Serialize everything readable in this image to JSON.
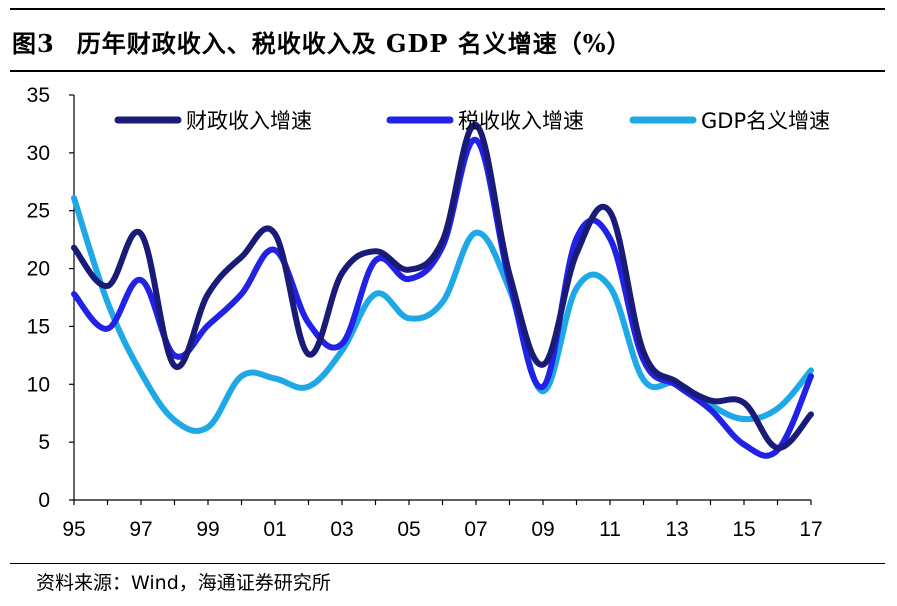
{
  "title": {
    "figure_label": "图3",
    "text": "历年财政收入、税收收入及 GDP 名义增速（%）"
  },
  "source": "资料来源：Wind，海通证券研究所",
  "chart_data": {
    "type": "line",
    "title": "历年财政收入、税收收入及 GDP 名义增速（%）",
    "xlabel": "",
    "ylabel": "",
    "ylim": [
      0,
      35
    ],
    "yticks": [
      "0",
      "5",
      "10",
      "15",
      "20",
      "25",
      "30",
      "35"
    ],
    "xlim": [
      1995,
      2017
    ],
    "xticks": [
      "95",
      "97",
      "99",
      "01",
      "03",
      "05",
      "07",
      "09",
      "11",
      "13",
      "15",
      "17"
    ],
    "x": [
      1995,
      1996,
      1997,
      1998,
      1999,
      2000,
      2001,
      2002,
      2003,
      2004,
      2005,
      2006,
      2007,
      2008,
      2009,
      2010,
      2011,
      2012,
      2013,
      2014,
      2015,
      2016,
      2017
    ],
    "legend_position": "top",
    "series": [
      {
        "name": "财政收入增速",
        "color": "#1a1a78",
        "values": [
          21.8,
          18.5,
          23.0,
          11.6,
          17.8,
          21.0,
          23.0,
          12.6,
          19.6,
          21.5,
          19.9,
          22.4,
          32.4,
          19.5,
          11.7,
          21.3,
          24.9,
          12.8,
          10.2,
          8.6,
          8.4,
          4.5,
          7.4
        ]
      },
      {
        "name": "税收收入增速",
        "color": "#2222e6",
        "values": [
          17.8,
          14.8,
          19.0,
          12.5,
          15.1,
          17.8,
          21.6,
          15.3,
          13.5,
          20.7,
          19.1,
          21.9,
          31.1,
          18.9,
          9.8,
          22.6,
          22.6,
          12.1,
          9.9,
          7.8,
          4.8,
          4.3,
          10.7
        ]
      },
      {
        "name": "GDP名义增速",
        "color": "#1ea9e6",
        "values": [
          26.1,
          17.1,
          11.0,
          6.9,
          6.3,
          10.7,
          10.5,
          9.8,
          12.9,
          17.8,
          15.7,
          17.1,
          23.1,
          18.2,
          9.4,
          18.3,
          18.4,
          10.4,
          10.1,
          8.2,
          7.0,
          7.9,
          11.2
        ]
      }
    ]
  }
}
